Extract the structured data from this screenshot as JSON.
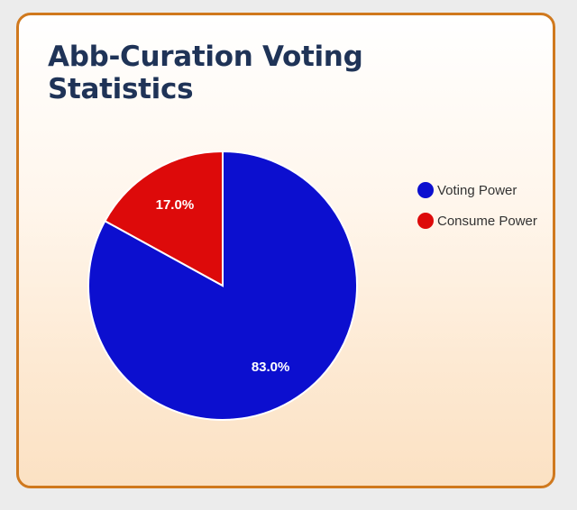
{
  "chart_data": {
    "type": "pie",
    "title": "Abb-Curation Voting Statistics",
    "series": [
      {
        "name": "Voting Power",
        "value": 83.0,
        "label": "83.0%",
        "color": "#0c0fcf"
      },
      {
        "name": "Consume Power",
        "value": 17.0,
        "label": "17.0%",
        "color": "#dd0a0a"
      }
    ],
    "legend_position": "right"
  }
}
